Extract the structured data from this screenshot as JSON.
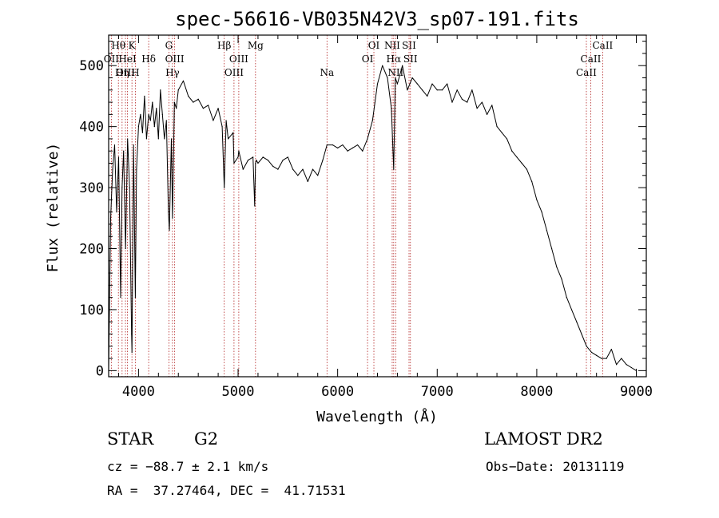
{
  "chart_data": {
    "type": "line",
    "title": "spec-56616-VB035N42V3_sp07-191.fits",
    "xlabel": "Wavelength (Å)",
    "ylabel": "Flux (relative)",
    "xlim": [
      3700,
      9100
    ],
    "ylim": [
      -10,
      550
    ],
    "xticks": [
      4000,
      5000,
      6000,
      7000,
      8000,
      9000
    ],
    "yticks": [
      0,
      100,
      200,
      300,
      400,
      500
    ],
    "grid": false,
    "legend": "none",
    "colors": {
      "spectrum": "#000000",
      "lines": "#b22222",
      "axes": "#000000"
    },
    "spectral_lines": [
      {
        "label": "Hθ",
        "wavelength": 3798,
        "row": 0
      },
      {
        "label": "OII",
        "wavelength": 3727,
        "row": 1
      },
      {
        "label": "OIII",
        "wavelength": 3869,
        "row": 2
      },
      {
        "label": "Hη",
        "wavelength": 3835,
        "row": 2
      },
      {
        "label": "K",
        "wavelength": 3934,
        "row": 0
      },
      {
        "label": "HeI",
        "wavelength": 3889,
        "row": 1
      },
      {
        "label": "H",
        "wavelength": 3968,
        "row": 2
      },
      {
        "label": "Hδ",
        "wavelength": 4102,
        "row": 1
      },
      {
        "label": "G",
        "wavelength": 4305,
        "row": 0
      },
      {
        "label": "OIII",
        "wavelength": 4363,
        "row": 1
      },
      {
        "label": "Hγ",
        "wavelength": 4341,
        "row": 2
      },
      {
        "label": "Hβ",
        "wavelength": 4861,
        "row": 0
      },
      {
        "label": "OIII",
        "wavelength": 5007,
        "row": 1
      },
      {
        "label": "OIII",
        "wavelength": 4959,
        "row": 2
      },
      {
        "label": "Mg",
        "wavelength": 5175,
        "row": 0
      },
      {
        "label": "Na",
        "wavelength": 5893,
        "row": 2
      },
      {
        "label": "OI",
        "wavelength": 6364,
        "row": 0
      },
      {
        "label": "OI",
        "wavelength": 6300,
        "row": 1
      },
      {
        "label": "NII",
        "wavelength": 6548,
        "row": 0
      },
      {
        "label": "SII",
        "wavelength": 6717,
        "row": 0
      },
      {
        "label": "Hα",
        "wavelength": 6563,
        "row": 1
      },
      {
        "label": "SII",
        "wavelength": 6731,
        "row": 1
      },
      {
        "label": "NII",
        "wavelength": 6583,
        "row": 2
      },
      {
        "label": "CaII",
        "wavelength": 8662,
        "row": 0
      },
      {
        "label": "CaII",
        "wavelength": 8542,
        "row": 1
      },
      {
        "label": "CaII",
        "wavelength": 8498,
        "row": 2
      }
    ],
    "series": [
      {
        "x": [
          3700,
          3720,
          3740,
          3760,
          3780,
          3800,
          3820,
          3835,
          3850,
          3870,
          3890,
          3910,
          3930,
          3934,
          3950,
          3968,
          3980,
          4000,
          4020,
          4040,
          4060,
          4080,
          4102,
          4120,
          4140,
          4160,
          4180,
          4200,
          4220,
          4240,
          4260,
          4280,
          4300,
          4310,
          4330,
          4341,
          4360,
          4380,
          4400,
          4450,
          4500,
          4550,
          4600,
          4650,
          4700,
          4750,
          4800,
          4840,
          4861,
          4880,
          4900,
          4950,
          4959,
          5000,
          5007,
          5050,
          5100,
          5150,
          5167,
          5175,
          5184,
          5200,
          5250,
          5300,
          5350,
          5400,
          5450,
          5500,
          5550,
          5600,
          5650,
          5700,
          5750,
          5800,
          5850,
          5893,
          5950,
          6000,
          6050,
          6100,
          6150,
          6200,
          6250,
          6300,
          6350,
          6400,
          6450,
          6500,
          6540,
          6563,
          6580,
          6600,
          6650,
          6700,
          6750,
          6800,
          6850,
          6900,
          6950,
          7000,
          7050,
          7100,
          7150,
          7200,
          7250,
          7300,
          7350,
          7400,
          7450,
          7500,
          7550,
          7600,
          7650,
          7700,
          7750,
          7800,
          7850,
          7900,
          7950,
          8000,
          8050,
          8100,
          8150,
          8200,
          8250,
          8300,
          8350,
          8400,
          8450,
          8500,
          8550,
          8600,
          8650,
          8700,
          8750,
          8800,
          8850,
          8900,
          8950,
          9000
        ],
        "y": [
          0,
          250,
          330,
          370,
          260,
          350,
          120,
          300,
          360,
          200,
          380,
          300,
          60,
          30,
          370,
          120,
          330,
          400,
          420,
          390,
          450,
          380,
          420,
          410,
          440,
          400,
          430,
          380,
          460,
          420,
          380,
          410,
          260,
          230,
          380,
          250,
          440,
          430,
          460,
          475,
          450,
          440,
          445,
          430,
          435,
          410,
          430,
          400,
          300,
          410,
          380,
          390,
          340,
          350,
          360,
          330,
          345,
          350,
          270,
          340,
          345,
          340,
          350,
          345,
          335,
          330,
          345,
          350,
          330,
          320,
          330,
          310,
          330,
          320,
          345,
          370,
          370,
          365,
          370,
          360,
          365,
          370,
          360,
          380,
          410,
          470,
          500,
          480,
          430,
          330,
          480,
          470,
          500,
          460,
          480,
          470,
          460,
          450,
          470,
          460,
          460,
          470,
          440,
          460,
          445,
          440,
          460,
          430,
          440,
          420,
          435,
          400,
          390,
          380,
          360,
          350,
          340,
          330,
          310,
          280,
          260,
          230,
          200,
          170,
          150,
          120,
          100,
          80,
          60,
          40,
          30,
          25,
          20,
          20,
          35,
          10,
          20,
          10,
          5,
          0
        ]
      }
    ]
  },
  "info": {
    "object_type": "STAR",
    "subclass": "G2",
    "survey": "LAMOST DR2",
    "redshift": "cz = −88.7 ± 2.1 km/s",
    "obs_date": "Obs−Date: 20131119",
    "coords": "RA =  37.27464, DEC =  41.71531"
  }
}
